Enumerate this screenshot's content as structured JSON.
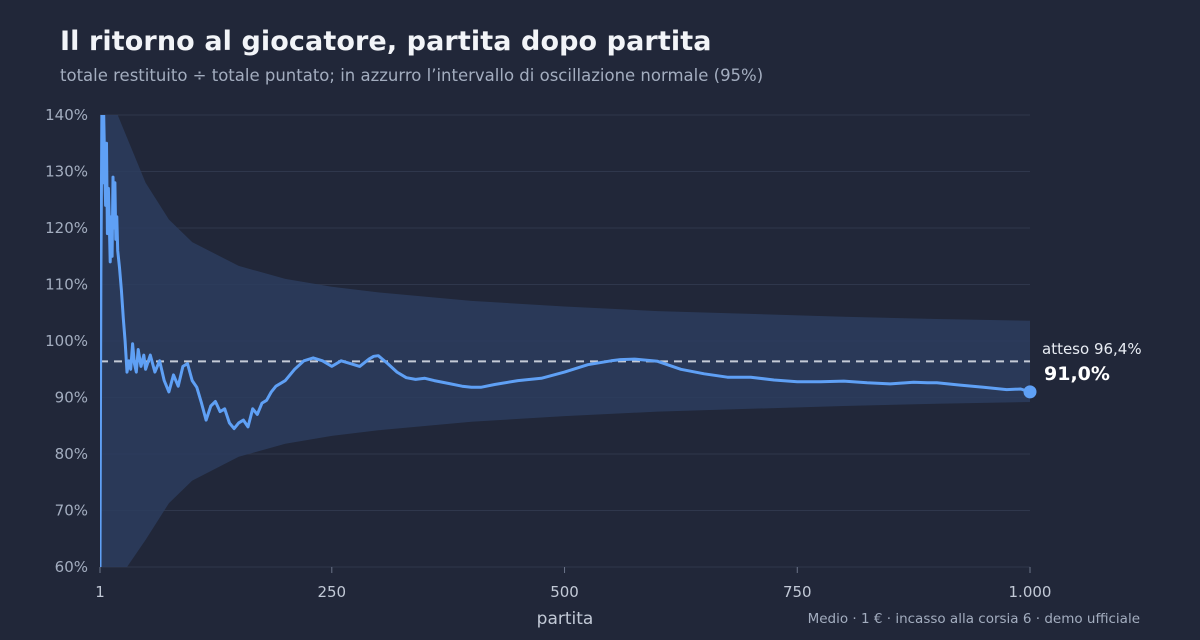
{
  "title": "Il ritorno al giocatore, partita dopo partita",
  "subtitle": "totale restituito ÷ totale puntato; in azzurro l’intervallo di oscillazione normale (95%)",
  "footer": "Medio · 1 € · incasso alla corsia 6 · demo ufficiale",
  "colors": {
    "background": "#212739",
    "line": "#5fa0f5",
    "band": "#2b3d5e",
    "expected_line": "#c4cad6",
    "grid": "#2f374c"
  },
  "chart_data": {
    "type": "line",
    "xlabel": "partita",
    "ylabel": "",
    "xlim": [
      1,
      1000
    ],
    "ylim": [
      60,
      140
    ],
    "x_ticks": [
      1,
      250,
      500,
      750,
      1000
    ],
    "x_tick_labels": [
      "1",
      "250",
      "500",
      "750",
      "1.000"
    ],
    "y_ticks": [
      60,
      70,
      80,
      90,
      100,
      110,
      120,
      130,
      140
    ],
    "y_tick_labels": [
      "60%",
      "70%",
      "80%",
      "90%",
      "100%",
      "110%",
      "120%",
      "130%",
      "140%"
    ],
    "expected": 96.4,
    "expected_label": "atteso 96,4%",
    "final_value": 91.0,
    "final_label": "91,0%",
    "band": {
      "description_in_subtitle": true,
      "center": 96.4,
      "x": [
        1,
        10,
        20,
        30,
        50,
        75,
        100,
        150,
        200,
        250,
        300,
        400,
        500,
        600,
        700,
        800,
        900,
        1000
      ],
      "upper": [
        140,
        140,
        140,
        136,
        128,
        121.5,
        117.5,
        113.3,
        111.0,
        109.6,
        108.6,
        107.1,
        106.1,
        105.3,
        104.8,
        104.3,
        103.9,
        103.6
      ],
      "lower": [
        60,
        60,
        60,
        60,
        64.8,
        71.3,
        75.3,
        79.5,
        81.8,
        83.2,
        84.2,
        85.7,
        86.7,
        87.5,
        88.0,
        88.5,
        88.9,
        89.2
      ]
    },
    "series": [
      {
        "x": [
          1,
          2,
          3,
          4,
          5,
          6,
          7,
          8,
          9,
          10,
          11,
          12,
          13,
          14,
          15,
          16,
          17,
          18,
          19,
          20,
          22,
          24,
          26,
          28,
          30,
          32,
          34,
          36,
          38,
          40,
          42,
          45,
          48,
          50,
          55,
          60,
          65,
          70,
          75,
          80,
          85,
          90,
          95,
          100,
          105,
          110,
          115,
          120,
          125,
          130,
          135,
          140,
          145,
          150,
          155,
          160,
          165,
          170,
          175,
          180,
          185,
          190,
          200,
          210,
          220,
          230,
          240,
          250,
          260,
          270,
          280,
          290,
          295,
          300,
          310,
          320,
          330,
          340,
          350,
          360,
          375,
          390,
          400,
          410,
          425,
          450,
          475,
          500,
          525,
          550,
          560,
          575,
          600,
          625,
          650,
          675,
          700,
          725,
          750,
          775,
          800,
          825,
          850,
          875,
          890,
          900,
          925,
          950,
          975,
          990,
          1000
        ],
        "y": [
          60,
          112,
          140,
          128,
          140,
          131,
          124,
          135,
          119,
          127,
          121,
          114,
          122,
          115,
          129,
          120,
          128,
          118,
          122,
          116,
          113,
          109,
          104,
          100,
          94.5,
          96.5,
          95,
          99.5,
          96,
          94.5,
          98.5,
          95.5,
          97.5,
          95,
          97.5,
          94.5,
          96.5,
          93,
          91,
          94,
          92,
          95.5,
          96,
          93,
          91.8,
          89,
          86,
          88.5,
          89.3,
          87.5,
          88,
          85.5,
          84.5,
          85.5,
          86,
          84.8,
          88,
          87,
          89,
          89.5,
          91,
          92,
          93,
          95,
          96.5,
          97,
          96.5,
          95.5,
          96.5,
          96,
          95.5,
          96.8,
          97.3,
          97.4,
          96,
          94.5,
          93.5,
          93.2,
          93.4,
          93.0,
          92.5,
          92.0,
          91.8,
          91.8,
          92.3,
          93.0,
          93.4,
          94.5,
          95.8,
          96.5,
          96.7,
          96.8,
          96.4,
          95.0,
          94.2,
          93.6,
          93.6,
          93.1,
          92.8,
          92.8,
          92.9,
          92.6,
          92.4,
          92.7,
          92.6,
          92.6,
          92.2,
          91.8,
          91.4,
          91.5,
          91.0
        ]
      }
    ]
  }
}
